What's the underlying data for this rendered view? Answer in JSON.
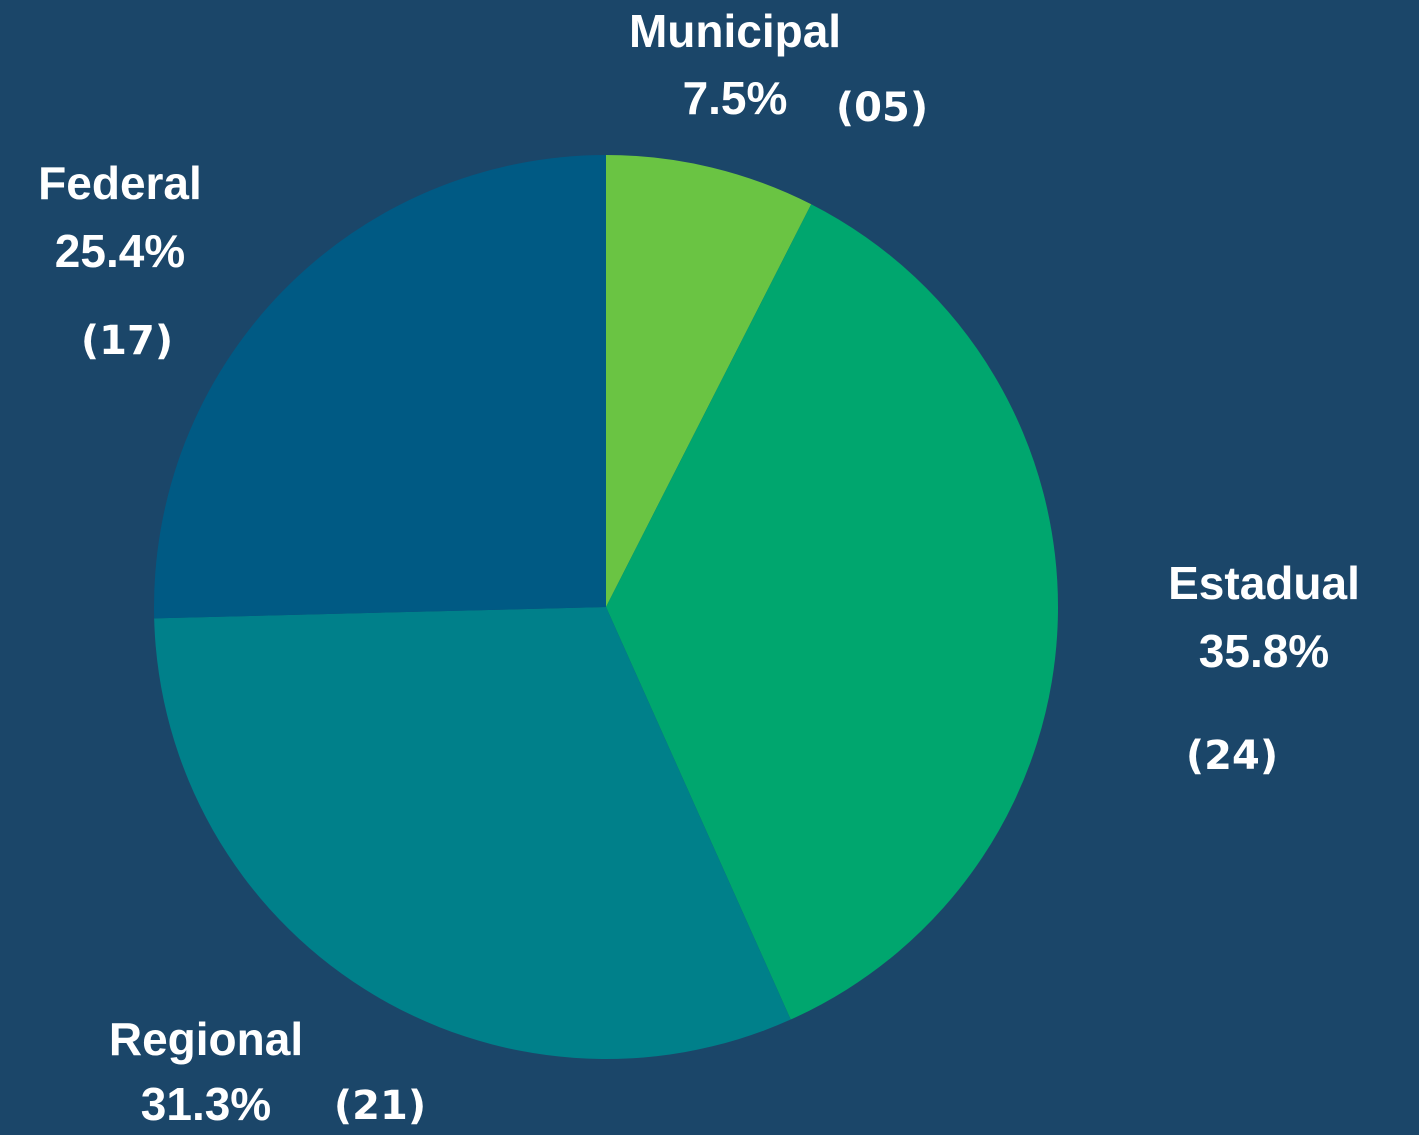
{
  "chart_data": {
    "type": "pie",
    "categories": [
      "Municipal",
      "Estadual",
      "Regional",
      "Federal"
    ],
    "values": [
      7.5,
      35.8,
      31.3,
      25.4
    ],
    "value_labels": [
      "7.5%",
      "35.8%",
      "31.3%",
      "25.4%"
    ],
    "count_labels": [
      "(05)",
      "(24)",
      "(21)",
      "(17)"
    ],
    "colors": [
      "#6ac443",
      "#00a66e",
      "#00808a",
      "#005a84"
    ]
  }
}
